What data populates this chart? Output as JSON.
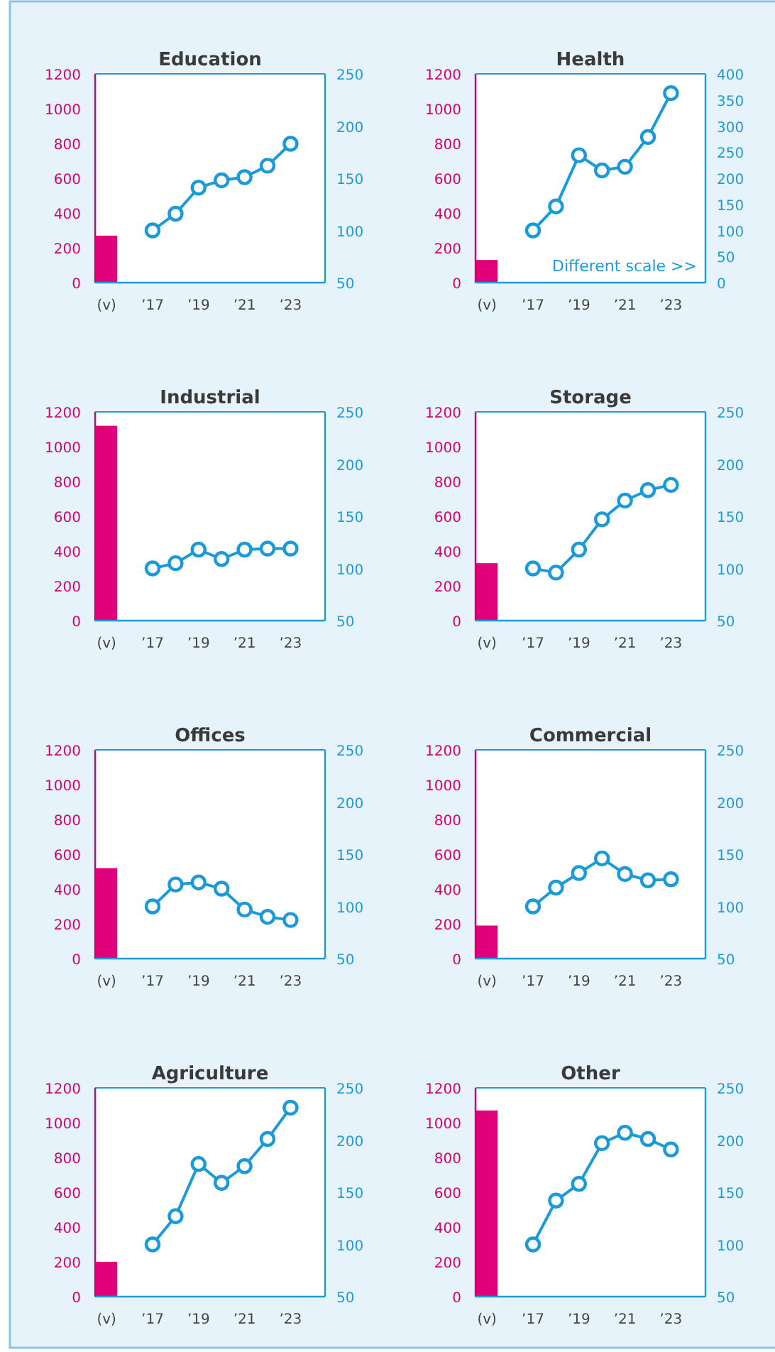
{
  "chart_data": [
    {
      "type": "bar",
      "title": "Education",
      "categories": [
        "(v)",
        null,
        "’17",
        null,
        "’19",
        null,
        "’21",
        null,
        "’23"
      ],
      "ylim": [
        0,
        1200
      ],
      "yticks": [
        0,
        200,
        400,
        600,
        800,
        1000,
        1200
      ],
      "y2lim": [
        50,
        250
      ],
      "y2ticks": [
        50,
        100,
        150,
        200,
        250
      ],
      "marker": "circle",
      "series": [
        {
          "color": "#e0007a",
          "values": [
            270,
            null,
            null,
            null,
            null,
            null,
            null,
            null,
            null
          ]
        },
        {
          "type": "line",
          "axis": "y2",
          "color": "#1a9ad6",
          "values": [
            null,
            null,
            100,
            116,
            141,
            148,
            151,
            162,
            183
          ]
        }
      ]
    },
    {
      "type": "bar",
      "title": "Health",
      "categories": [
        "(v)",
        null,
        "’17",
        null,
        "’19",
        null,
        "’21",
        null,
        "’23"
      ],
      "ylim": [
        0,
        1200
      ],
      "yticks": [
        0,
        200,
        400,
        600,
        800,
        1000,
        1200
      ],
      "y2lim": [
        0,
        400
      ],
      "y2ticks": [
        0,
        50,
        100,
        150,
        200,
        250,
        300,
        350,
        400
      ],
      "marker": "circle",
      "annotations": [
        "Different scale >>"
      ],
      "series": [
        {
          "color": "#e0007a",
          "values": [
            130,
            null,
            null,
            null,
            null,
            null,
            null,
            null,
            null
          ]
        },
        {
          "type": "line",
          "axis": "y2",
          "color": "#1a9ad6",
          "values": [
            null,
            null,
            100,
            146,
            244,
            215,
            222,
            279,
            363
          ]
        }
      ]
    },
    {
      "type": "bar",
      "title": "Industrial",
      "categories": [
        "(v)",
        null,
        "’17",
        null,
        "’19",
        null,
        "’21",
        null,
        "’23"
      ],
      "ylim": [
        0,
        1200
      ],
      "yticks": [
        0,
        200,
        400,
        600,
        800,
        1000,
        1200
      ],
      "y2lim": [
        50,
        250
      ],
      "y2ticks": [
        50,
        100,
        150,
        200,
        250
      ],
      "marker": "circle",
      "series": [
        {
          "color": "#e0007a",
          "values": [
            1120,
            null,
            null,
            null,
            null,
            null,
            null,
            null,
            null
          ]
        },
        {
          "type": "line",
          "axis": "y2",
          "color": "#1a9ad6",
          "values": [
            null,
            null,
            100,
            105,
            118,
            109,
            118,
            119,
            119
          ]
        }
      ]
    },
    {
      "type": "bar",
      "title": "Storage",
      "categories": [
        "(v)",
        null,
        "’17",
        null,
        "’19",
        null,
        "’21",
        null,
        "’23"
      ],
      "ylim": [
        0,
        1200
      ],
      "yticks": [
        0,
        200,
        400,
        600,
        800,
        1000,
        1200
      ],
      "y2lim": [
        50,
        250
      ],
      "y2ticks": [
        50,
        100,
        150,
        200,
        250
      ],
      "marker": "circle",
      "series": [
        {
          "color": "#e0007a",
          "values": [
            330,
            null,
            null,
            null,
            null,
            null,
            null,
            null,
            null
          ]
        },
        {
          "type": "line",
          "axis": "y2",
          "color": "#1a9ad6",
          "values": [
            null,
            null,
            100,
            96,
            118,
            147,
            165,
            175,
            180
          ]
        }
      ]
    },
    {
      "type": "bar",
      "title": "Offices",
      "categories": [
        "(v)",
        null,
        "’17",
        null,
        "’19",
        null,
        "’21",
        null,
        "’23"
      ],
      "ylim": [
        0,
        1200
      ],
      "yticks": [
        0,
        200,
        400,
        600,
        800,
        1000,
        1200
      ],
      "y2lim": [
        50,
        250
      ],
      "y2ticks": [
        50,
        100,
        150,
        200,
        250
      ],
      "marker": "circle",
      "series": [
        {
          "color": "#e0007a",
          "values": [
            520,
            null,
            null,
            null,
            null,
            null,
            null,
            null,
            null
          ]
        },
        {
          "type": "line",
          "axis": "y2",
          "color": "#1a9ad6",
          "values": [
            null,
            null,
            100,
            121,
            123,
            117,
            97,
            90,
            87
          ]
        }
      ]
    },
    {
      "type": "bar",
      "title": "Commercial",
      "categories": [
        "(v)",
        null,
        "’17",
        null,
        "’19",
        null,
        "’21",
        null,
        "’23"
      ],
      "ylim": [
        0,
        1200
      ],
      "yticks": [
        0,
        200,
        400,
        600,
        800,
        1000,
        1200
      ],
      "y2lim": [
        50,
        250
      ],
      "y2ticks": [
        50,
        100,
        150,
        200,
        250
      ],
      "marker": "circle",
      "series": [
        {
          "color": "#e0007a",
          "values": [
            190,
            null,
            null,
            null,
            null,
            null,
            null,
            null,
            null
          ]
        },
        {
          "type": "line",
          "axis": "y2",
          "color": "#1a9ad6",
          "values": [
            null,
            null,
            100,
            118,
            132,
            146,
            131,
            125,
            126
          ]
        }
      ]
    },
    {
      "type": "bar",
      "title": "Agriculture",
      "categories": [
        "(v)",
        null,
        "’17",
        null,
        "’19",
        null,
        "’21",
        null,
        "’23"
      ],
      "ylim": [
        0,
        1200
      ],
      "yticks": [
        0,
        200,
        400,
        600,
        800,
        1000,
        1200
      ],
      "y2lim": [
        50,
        250
      ],
      "y2ticks": [
        50,
        100,
        150,
        200,
        250
      ],
      "marker": "circle",
      "series": [
        {
          "color": "#e0007a",
          "values": [
            200,
            null,
            null,
            null,
            null,
            null,
            null,
            null,
            null
          ]
        },
        {
          "type": "line",
          "axis": "y2",
          "color": "#1a9ad6",
          "values": [
            null,
            null,
            100,
            127,
            177,
            159,
            175,
            201,
            231
          ]
        }
      ]
    },
    {
      "type": "bar",
      "title": "Other",
      "categories": [
        "(v)",
        null,
        "’17",
        null,
        "’19",
        null,
        "’21",
        null,
        "’23"
      ],
      "ylim": [
        0,
        1200
      ],
      "yticks": [
        0,
        200,
        400,
        600,
        800,
        1000,
        1200
      ],
      "y2lim": [
        50,
        250
      ],
      "y2ticks": [
        50,
        100,
        150,
        200,
        250
      ],
      "marker": "circle",
      "series": [
        {
          "color": "#e0007a",
          "values": [
            1070,
            null,
            null,
            null,
            null,
            null,
            null,
            null,
            null
          ]
        },
        {
          "type": "line",
          "axis": "y2",
          "color": "#1a9ad6",
          "values": [
            null,
            null,
            100,
            142,
            158,
            197,
            207,
            201,
            191
          ]
        }
      ]
    }
  ]
}
